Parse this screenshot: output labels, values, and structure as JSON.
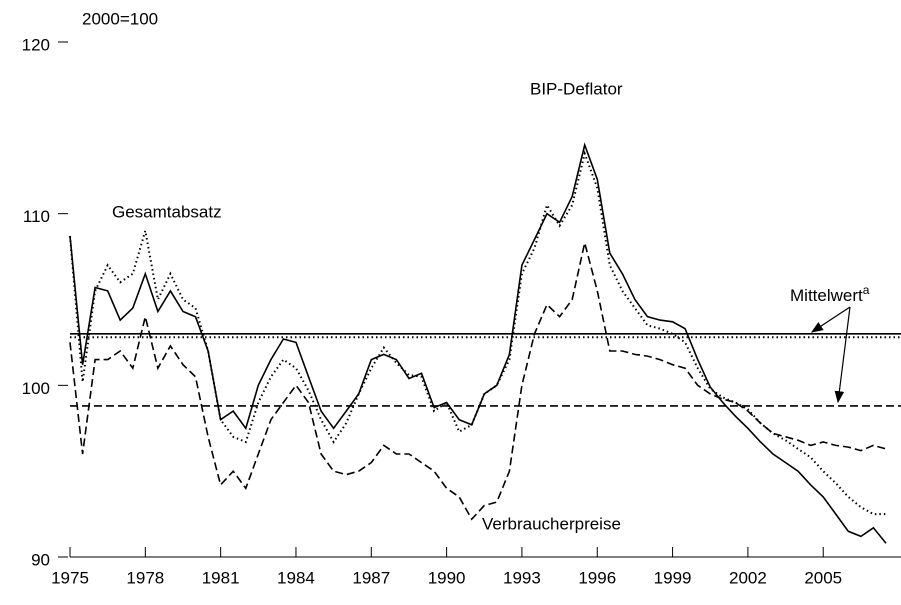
{
  "chart_data": {
    "type": "line",
    "unit_label": "2000=100",
    "x": [
      1975,
      1975.5,
      1976,
      1976.5,
      1977,
      1977.5,
      1978,
      1978.5,
      1979,
      1979.5,
      1980,
      1980.5,
      1981,
      1981.5,
      1982,
      1982.5,
      1983,
      1983.5,
      1984,
      1984.5,
      1985,
      1985.5,
      1986,
      1986.5,
      1987,
      1987.5,
      1988,
      1988.5,
      1989,
      1989.5,
      1990,
      1990.5,
      1991,
      1991.5,
      1992,
      1992.5,
      1993,
      1993.5,
      1994,
      1994.5,
      1995,
      1995.5,
      1996,
      1996.5,
      1997,
      1997.5,
      1998,
      1998.5,
      1999,
      1999.5,
      2000,
      2000.5,
      2001,
      2001.5,
      2002,
      2002.5,
      2003,
      2003.5,
      2004,
      2004.5,
      2005,
      2005.5,
      2006,
      2006.5,
      2007,
      2007.5
    ],
    "series": [
      {
        "name": "BIP-Deflator",
        "color": "#000000",
        "style": "solid",
        "values": [
          108.7,
          101.2,
          105.7,
          105.5,
          103.8,
          104.5,
          106.5,
          104.3,
          105.5,
          104.3,
          104,
          102,
          98,
          98.5,
          97.5,
          100,
          101.5,
          102.7,
          102.5,
          100.5,
          98.5,
          97.5,
          98.5,
          99.5,
          101.5,
          101.8,
          101.5,
          100.4,
          100.7,
          98.7,
          99,
          98,
          97.7,
          99.5,
          100,
          101.8,
          107,
          108.5,
          110,
          109.5,
          111,
          114,
          112,
          107.7,
          106.5,
          105,
          104,
          103.8,
          103.7,
          103.3,
          101.5,
          99.9,
          99,
          98.2,
          97.5,
          96.7,
          96,
          95.5,
          95,
          94.2,
          93.5,
          92.5,
          91.5,
          91.2,
          91.7,
          90.8
        ]
      },
      {
        "name": "Gesamtabsatz",
        "color": "#000000",
        "style": "dotted",
        "values": [
          108.7,
          100.2,
          105.5,
          107,
          106,
          106.5,
          109,
          105,
          106.5,
          105,
          104.5,
          102,
          98,
          97,
          96.7,
          99,
          100.5,
          101.5,
          101,
          99.7,
          98,
          96.7,
          97.8,
          99.5,
          101,
          102.2,
          101.3,
          100.6,
          100.5,
          98.5,
          99,
          97.3,
          97.7,
          99.5,
          100,
          101.5,
          106.5,
          108,
          110.5,
          109.3,
          110.5,
          113.5,
          111.5,
          107,
          105.5,
          104.5,
          103.5,
          103.3,
          103,
          102.5,
          101,
          99.8,
          99.3,
          99,
          98.6,
          97.8,
          97.2,
          96.8,
          96.3,
          95.8,
          95,
          94.3,
          93.5,
          92.9,
          92.5,
          92.5
        ]
      },
      {
        "name": "Verbraucherpreise",
        "color": "#000000",
        "style": "dashed",
        "values": [
          102.5,
          96,
          101.5,
          101.5,
          102,
          101,
          104,
          101,
          102.3,
          101.2,
          100.5,
          97,
          94.2,
          95,
          94,
          96,
          98,
          99,
          100,
          99,
          96,
          95,
          94.8,
          95,
          95.5,
          96.5,
          96,
          96,
          95.5,
          95,
          94,
          93.5,
          92.2,
          93,
          93.2,
          95,
          100,
          103,
          104.7,
          104,
          105,
          108.3,
          105.5,
          102,
          102,
          101.8,
          101.7,
          101.5,
          101.2,
          101,
          100,
          99.5,
          99.2,
          99,
          98.5,
          97.8,
          97.2,
          97,
          96.8,
          96.5,
          96.7,
          96.5,
          96.4,
          96.2,
          96.5,
          96.3
        ]
      }
    ],
    "mean_label": {
      "text": "Mittelwert",
      "superscript": "a"
    },
    "means": [
      {
        "value": 103.0,
        "style": "solid"
      },
      {
        "value": 102.8,
        "style": "dotted"
      },
      {
        "value": 98.8,
        "style": "dashed"
      }
    ],
    "xlim": [
      1975,
      2007.5
    ],
    "xticks": [
      1975,
      1978,
      1981,
      1984,
      1987,
      1990,
      1993,
      1996,
      1999,
      2002,
      2005
    ],
    "ylim": [
      90,
      120
    ],
    "yticks": [
      90,
      100,
      110,
      120
    ]
  }
}
